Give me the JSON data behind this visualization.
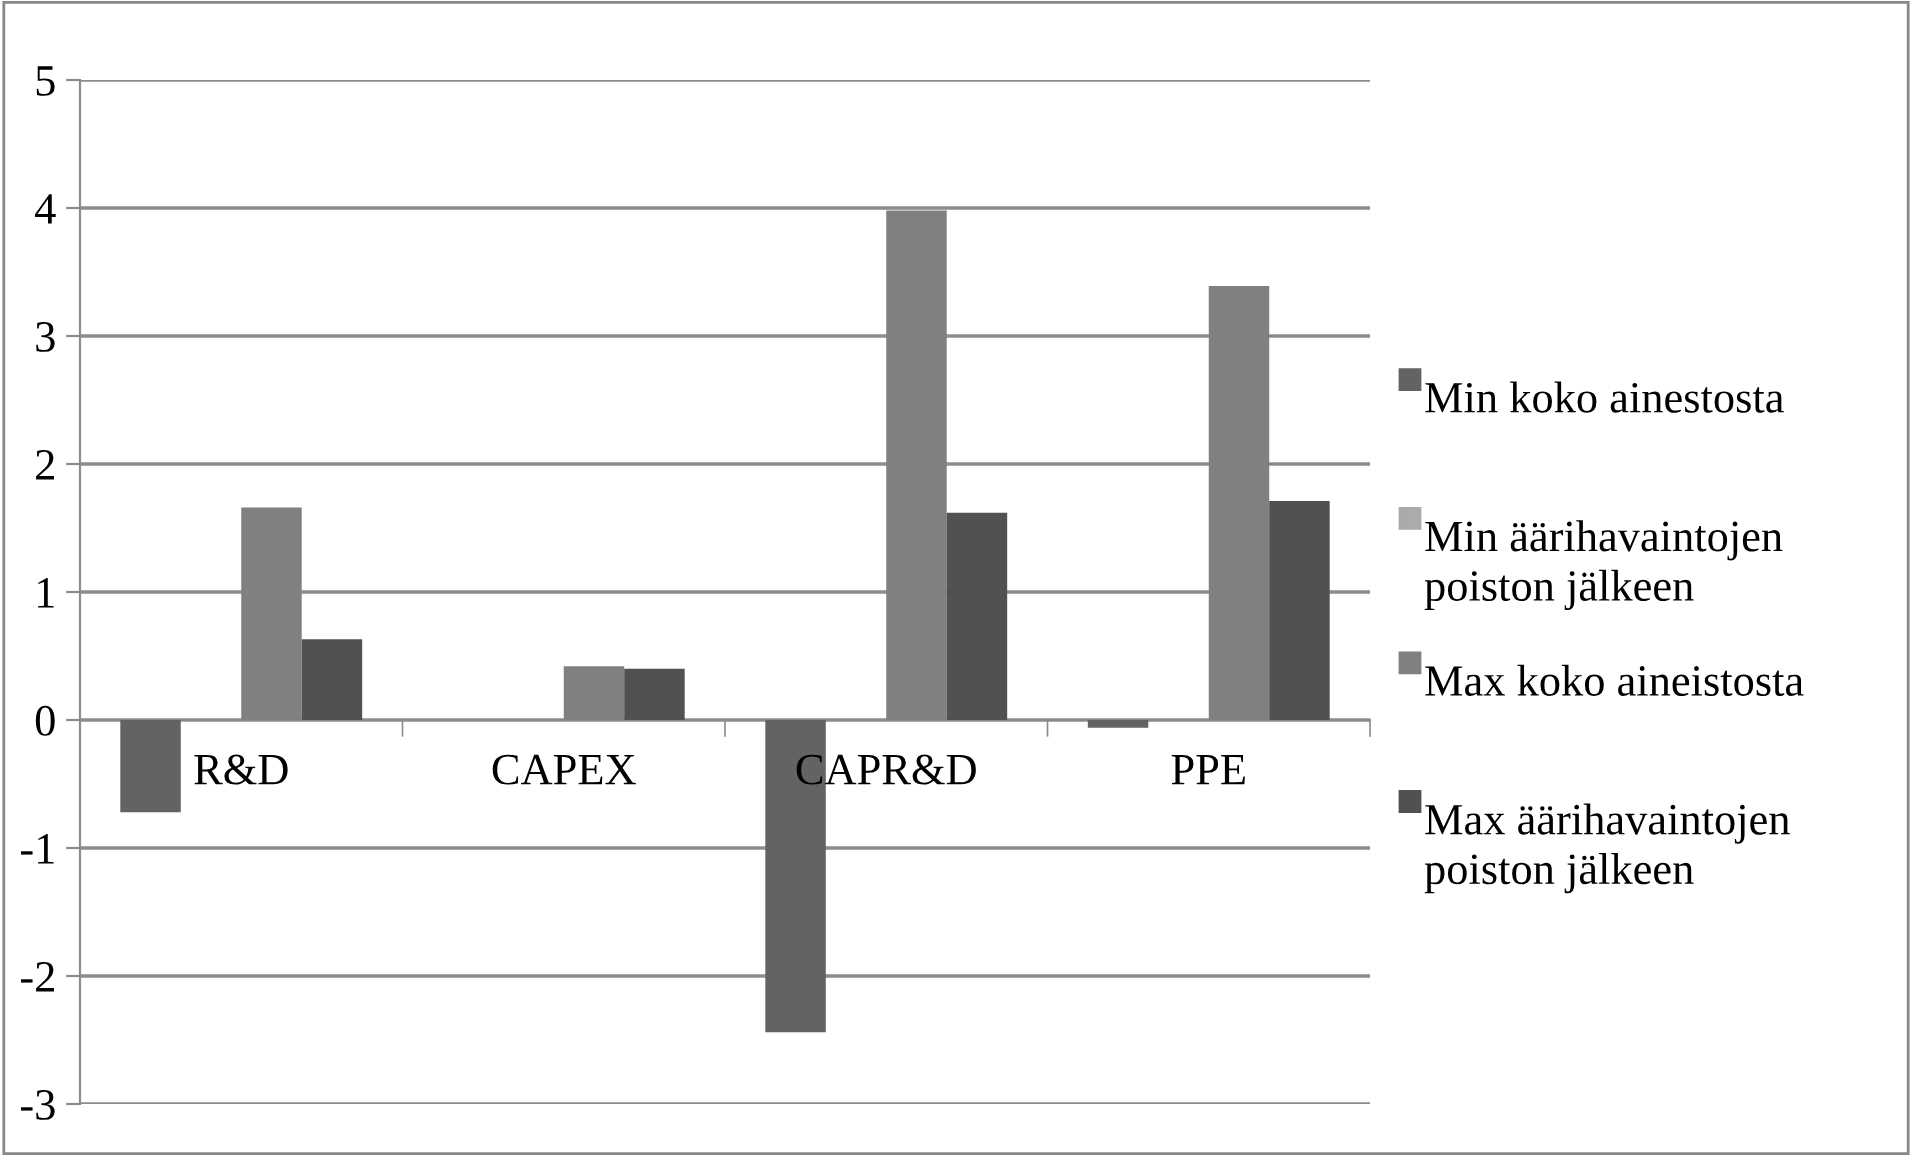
{
  "chart_data": {
    "type": "bar",
    "categories": [
      "R&D",
      "CAPEX",
      "CAPR&D",
      "PPE"
    ],
    "series": [
      {
        "name": "Min koko ainestosta",
        "color": "#636363",
        "values": [
          -0.72,
          0,
          -2.44,
          -0.06
        ]
      },
      {
        "name": "Min äärihavaintojen poiston jälkeen",
        "color": "#ababab",
        "values": [
          0,
          0,
          0,
          0
        ]
      },
      {
        "name": "Max koko aineistosta",
        "color": "#808080",
        "values": [
          1.66,
          0.42,
          3.98,
          3.39
        ]
      },
      {
        "name": "Max äärihavaintojen poiston jälkeen",
        "color": "#515151",
        "values": [
          0.63,
          0.4,
          1.62,
          1.71
        ]
      }
    ],
    "ylim": [
      -3,
      5
    ],
    "yticks": [
      -3,
      -2,
      -1,
      0,
      1,
      2,
      3,
      4,
      5
    ],
    "grid": "y",
    "legend": "right"
  }
}
